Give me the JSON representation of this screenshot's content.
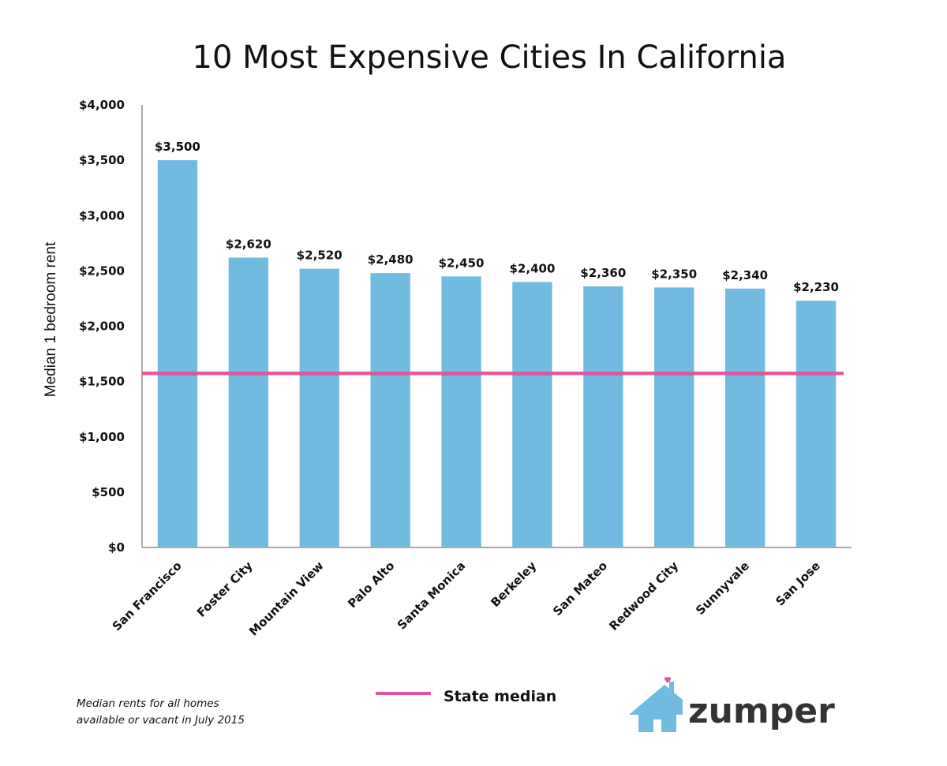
{
  "chart_data": {
    "type": "bar",
    "title": "10 Most Expensive Cities In California",
    "xlabel": "",
    "ylabel": "Median 1 bedroom rent",
    "categories": [
      "San Francisco",
      "Foster City",
      "Mountain View",
      "Palo Alto",
      "Santa Monica",
      "Berkeley",
      "San Mateo",
      "Redwood City",
      "Sunnyvale",
      "San Jose"
    ],
    "values": [
      3500,
      2620,
      2520,
      2480,
      2450,
      2400,
      2360,
      2350,
      2340,
      2230
    ],
    "data_labels": [
      "$3,500",
      "$2,620",
      "$2,520",
      "$2,480",
      "$2,450",
      "$2,400",
      "$2,360",
      "$2,350",
      "$2,340",
      "$2,230"
    ],
    "ylim": [
      0,
      4000
    ],
    "yticks": [
      0,
      500,
      1000,
      1500,
      2000,
      2500,
      3000,
      3500,
      4000
    ],
    "ytick_labels": [
      "$0",
      "$500",
      "$1,000",
      "$1,500",
      "$2,000",
      "$2,500",
      "$3,000",
      "$3,500",
      "$4,000"
    ],
    "grid": false,
    "reference_lines": [
      {
        "name": "State median",
        "value": 1575,
        "orientation": "horizontal"
      }
    ],
    "legend": {
      "entries": [
        "State median"
      ],
      "position": "bottom-center"
    },
    "annotations": [
      "Median rents for all homes",
      "available or vacant in July 2015"
    ]
  },
  "colors": {
    "bar": "#72BBE0",
    "median_line": "#E5529C",
    "axis": "#AAAAAA",
    "text": "#111111",
    "logo_house": "#72BBE0",
    "logo_heart": "#E5529C",
    "logo_text": "#333333"
  },
  "brand": {
    "name": "zumper",
    "icon": "house-heart-icon"
  }
}
